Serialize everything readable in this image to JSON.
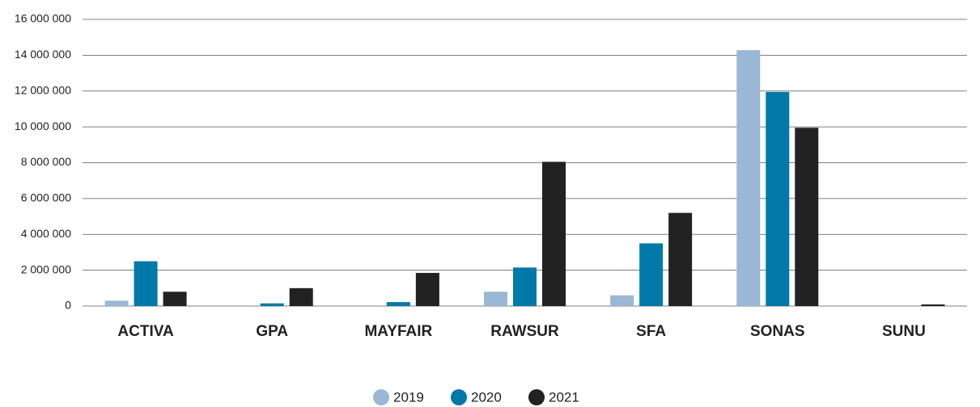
{
  "chart_data": {
    "type": "bar",
    "categories": [
      "ACTIVA",
      "GPA",
      "MAYFAIR",
      "RAWSUR",
      "SFA",
      "SONAS",
      "SUNU"
    ],
    "series": [
      {
        "name": "2019",
        "color": "#9bb7d6",
        "values": [
          300000,
          0,
          0,
          800000,
          600000,
          14280000,
          0
        ]
      },
      {
        "name": "2020",
        "color": "#0079a8",
        "values": [
          2500000,
          150000,
          220000,
          2150000,
          3500000,
          11950000,
          0
        ]
      },
      {
        "name": "2021",
        "color": "#222222",
        "values": [
          800000,
          1000000,
          1850000,
          8050000,
          5200000,
          9950000,
          90000
        ]
      }
    ],
    "ylim": [
      0,
      16000000
    ],
    "yticks": [
      0,
      {
        "value": 2000000,
        "label": "2 000 000"
      },
      {
        "value": 4000000,
        "label": "4 000 000"
      },
      {
        "value": 6000000,
        "label": "6 000 000"
      },
      {
        "value": 8000000,
        "label": "8 000 000"
      },
      {
        "value": 10000000,
        "label": "10 000 000"
      },
      {
        "value": 12000000,
        "label": "12 000 000"
      },
      {
        "value": 14000000,
        "label": "14 000 000"
      },
      {
        "value": 16000000,
        "label": "16 000 000"
      }
    ],
    "grid": true,
    "legend": "bottom"
  }
}
